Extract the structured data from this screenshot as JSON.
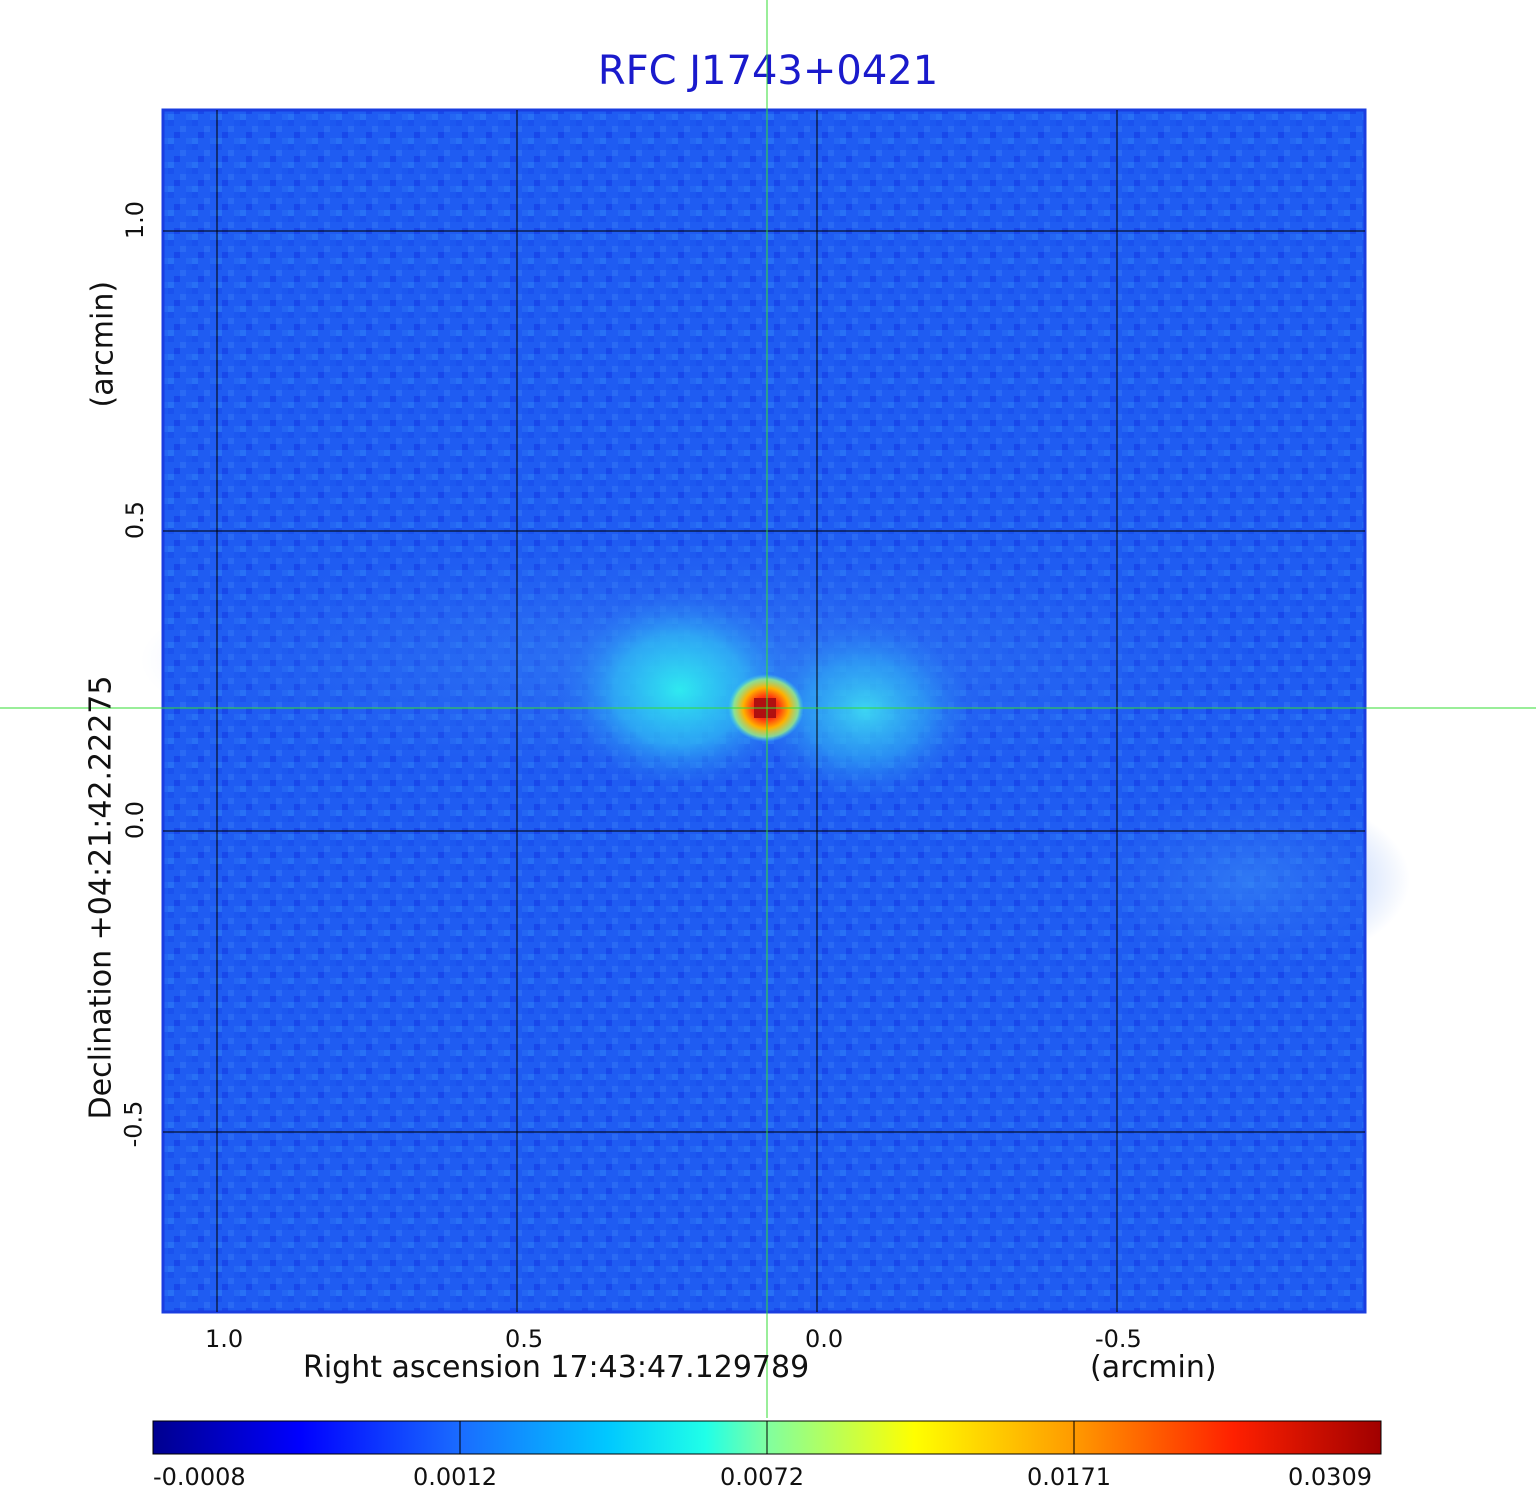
{
  "title": "RFC J1743+0421",
  "xaxis": {
    "label": "Right ascension  17:43:47.129789",
    "unit": "(arcmin)",
    "ticks": [
      "1.0",
      "0.5",
      "0.0",
      "-0.5"
    ]
  },
  "yaxis": {
    "label": "Declination  +04:21:42.22275",
    "unit": "(arcmin)",
    "ticks": [
      "1.0",
      "0.5",
      "0.0",
      "-0.5"
    ]
  },
  "colorbar": {
    "ticks": [
      "-0.0008",
      "0.0012",
      "0.0072",
      "0.0171",
      "0.0309"
    ]
  },
  "colors": {
    "title": "#1a1acc",
    "crosshair": "#33dd33",
    "grid": "#000000",
    "background_map": "#1f5cf2"
  },
  "icons": {
    "crosshair": "crosshair-icon"
  }
}
